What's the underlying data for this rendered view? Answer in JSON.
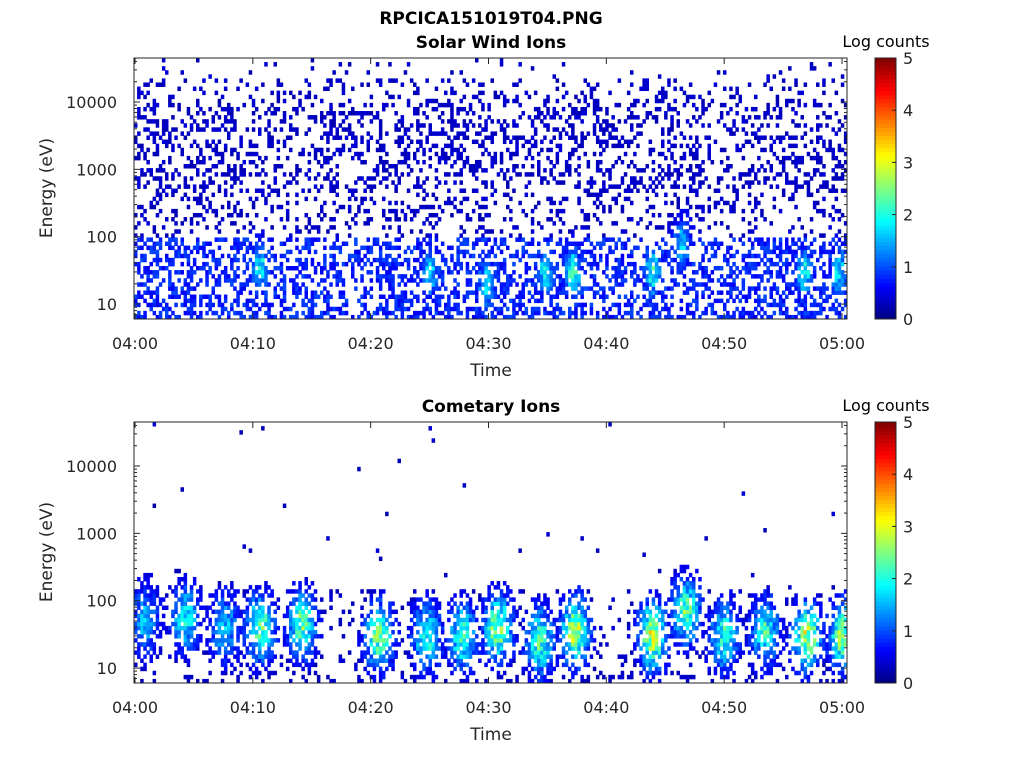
{
  "figure_title": "RPCICA151019T04.PNG",
  "chart_data": [
    {
      "type": "heatmap",
      "title": "Solar Wind Ions",
      "xlabel": "Time",
      "ylabel": "Energy (eV)",
      "x_ticks": [
        "04:00",
        "04:10",
        "04:20",
        "04:30",
        "04:40",
        "04:50",
        "05:00"
      ],
      "y_ticks": [
        "10",
        "100",
        "1000",
        "10000"
      ],
      "y_scale": "log",
      "ylim": [
        6,
        45000
      ],
      "colorbar": {
        "label": "Log counts",
        "ticks": [
          "0",
          "1",
          "2",
          "3",
          "4",
          "5"
        ],
        "range": [
          0,
          5
        ],
        "colormap": "jet"
      },
      "features": {
        "background_level": 0.4,
        "low_energy_band_level": 0.9,
        "bursts": [
          {
            "time_min": 10.5,
            "energy_ev": 35,
            "level": 1.8
          },
          {
            "time_min": 24.8,
            "energy_ev": 30,
            "level": 1.6
          },
          {
            "time_min": 29.5,
            "energy_ev": 20,
            "level": 1.6
          },
          {
            "time_min": 34.5,
            "energy_ev": 30,
            "level": 1.7
          },
          {
            "time_min": 36.8,
            "energy_ev": 30,
            "level": 2.0
          },
          {
            "time_min": 43.5,
            "energy_ev": 30,
            "level": 1.9
          },
          {
            "time_min": 46.0,
            "energy_ev": 80,
            "level": 1.5
          },
          {
            "time_min": 56.3,
            "energy_ev": 30,
            "level": 1.8
          },
          {
            "time_min": 59.2,
            "energy_ev": 30,
            "level": 1.7
          }
        ]
      }
    },
    {
      "type": "heatmap",
      "title": "Cometary Ions",
      "xlabel": "Time",
      "ylabel": "Energy (eV)",
      "x_ticks": [
        "04:00",
        "04:10",
        "04:20",
        "04:30",
        "04:40",
        "04:50",
        "05:00"
      ],
      "y_ticks": [
        "10",
        "100",
        "1000",
        "10000"
      ],
      "y_scale": "log",
      "ylim": [
        6,
        45000
      ],
      "colorbar": {
        "label": "Log counts",
        "ticks": [
          "0",
          "1",
          "2",
          "3",
          "4",
          "5"
        ],
        "range": [
          0,
          5
        ],
        "colormap": "jet"
      },
      "features": {
        "background_level": 0.4,
        "bursts": [
          {
            "time_min": 0.8,
            "energy_ev": 50,
            "level": 1.4
          },
          {
            "time_min": 4.2,
            "energy_ev": 55,
            "level": 1.8
          },
          {
            "time_min": 7.5,
            "energy_ev": 40,
            "level": 1.5
          },
          {
            "time_min": 10.5,
            "energy_ev": 40,
            "level": 2.3
          },
          {
            "time_min": 14.0,
            "energy_ev": 45,
            "level": 2.3
          },
          {
            "time_min": 20.5,
            "energy_ev": 30,
            "level": 2.4
          },
          {
            "time_min": 24.5,
            "energy_ev": 30,
            "level": 2.0
          },
          {
            "time_min": 27.5,
            "energy_ev": 30,
            "level": 2.1
          },
          {
            "time_min": 30.5,
            "energy_ev": 40,
            "level": 2.6
          },
          {
            "time_min": 34.0,
            "energy_ev": 25,
            "level": 2.2
          },
          {
            "time_min": 37.0,
            "energy_ev": 35,
            "level": 2.8
          },
          {
            "time_min": 43.5,
            "energy_ev": 30,
            "level": 2.9
          },
          {
            "time_min": 46.3,
            "energy_ev": 70,
            "level": 2.3
          },
          {
            "time_min": 49.5,
            "energy_ev": 30,
            "level": 2.0
          },
          {
            "time_min": 53.0,
            "energy_ev": 35,
            "level": 2.0
          },
          {
            "time_min": 56.5,
            "energy_ev": 30,
            "level": 2.8
          },
          {
            "time_min": 59.5,
            "energy_ev": 30,
            "level": 2.5
          }
        ]
      }
    }
  ]
}
